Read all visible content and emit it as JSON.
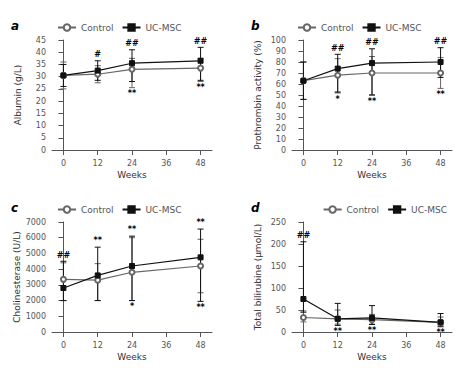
{
  "chart_data": [
    {
      "type": "line",
      "title": "a",
      "x_label": "Weeks",
      "y_label": "Albumin (g/L)",
      "x": [
        0,
        12,
        24,
        48
      ],
      "xlim": [
        -4,
        52
      ],
      "xticks": [
        0,
        12,
        24,
        36,
        48
      ],
      "ylim": [
        0,
        45
      ],
      "yticks": [
        0,
        5,
        10,
        15,
        20,
        25,
        30,
        35,
        40,
        45
      ],
      "grid": false,
      "legend": "upper left",
      "series": [
        {
          "name": "Control",
          "color": "#666666",
          "marker": "open_circle",
          "line_style": "solid",
          "values": [
            30.5,
            31.0,
            33.0,
            33.5
          ],
          "err_up": [
            5.5,
            3.5,
            4.5,
            4.0
          ],
          "err_down": [
            5.5,
            3.5,
            7.5,
            5.5
          ]
        },
        {
          "name": "UC-MSC",
          "color": "#111111",
          "marker": "square",
          "line_style": "solid",
          "values": [
            30.5,
            32.5,
            35.5,
            36.5
          ],
          "err_up": [
            4.5,
            4.0,
            5.5,
            5.5
          ],
          "err_down": [
            4.5,
            4.0,
            7.5,
            8.0
          ]
        }
      ],
      "annotations": [
        {
          "x": 12,
          "text": "#",
          "position": "above"
        },
        {
          "x": 24,
          "text": "##",
          "position": "above"
        },
        {
          "x": 48,
          "text": "##",
          "position": "above"
        },
        {
          "x": 24,
          "text": "**",
          "position": "below"
        },
        {
          "x": 48,
          "text": "**",
          "position": "below"
        }
      ]
    },
    {
      "type": "line",
      "title": "b",
      "x_label": "Weeks",
      "y_label": "Prothrombin activity (%)",
      "x": [
        0,
        12,
        24,
        48
      ],
      "xlim": [
        -4,
        52
      ],
      "xticks": [
        0,
        12,
        24,
        36,
        48
      ],
      "ylim": [
        0,
        100
      ],
      "yticks": [
        0,
        10,
        20,
        30,
        40,
        50,
        60,
        70,
        80,
        90,
        100
      ],
      "grid": false,
      "legend": "upper left",
      "series": [
        {
          "name": "Control",
          "color": "#666666",
          "marker": "open_circle",
          "line_style": "solid",
          "values": [
            63.0,
            68.0,
            70.0,
            70.0
          ],
          "err_up": [
            17.0,
            15.0,
            15.0,
            14.0
          ],
          "err_down": [
            17.0,
            15.0,
            20.0,
            14.0
          ]
        },
        {
          "name": "UC-MSC",
          "color": "#111111",
          "marker": "square",
          "line_style": "solid",
          "values": [
            63.0,
            74.0,
            79.0,
            80.0
          ],
          "err_up": [
            17.0,
            13.0,
            13.0,
            13.0
          ],
          "err_down": [
            17.0,
            22.0,
            29.0,
            14.0
          ]
        }
      ],
      "annotations": [
        {
          "x": 12,
          "text": "##",
          "position": "above"
        },
        {
          "x": 24,
          "text": "##",
          "position": "above"
        },
        {
          "x": 48,
          "text": "##",
          "position": "above"
        },
        {
          "x": 12,
          "text": "*",
          "position": "below"
        },
        {
          "x": 24,
          "text": "**",
          "position": "below"
        },
        {
          "x": 48,
          "text": "**",
          "position": "below"
        }
      ]
    },
    {
      "type": "line",
      "title": "c",
      "x_label": "Weeks",
      "y_label": "Cholinesterase (U/L)",
      "x": [
        0,
        12,
        24,
        48
      ],
      "xlim": [
        -4,
        52
      ],
      "xticks": [
        0,
        12,
        24,
        36,
        48
      ],
      "ylim": [
        0,
        7000
      ],
      "yticks": [
        0,
        1000,
        2000,
        3000,
        4000,
        5000,
        6000,
        7000
      ],
      "grid": false,
      "legend": "upper left",
      "series": [
        {
          "name": "Control",
          "color": "#666666",
          "marker": "open_circle",
          "line_style": "solid",
          "values": [
            3350,
            3300,
            3800,
            4200
          ],
          "err_up": [
            1050,
            1050,
            2200,
            1700
          ],
          "err_down": [
            1350,
            1300,
            1800,
            1700
          ]
        },
        {
          "name": "UC-MSC",
          "color": "#111111",
          "marker": "square",
          "line_style": "solid",
          "values": [
            2800,
            3600,
            4200,
            4750
          ],
          "err_up": [
            1700,
            1800,
            1900,
            1800
          ],
          "err_down": [
            800,
            1600,
            2200,
            2800
          ]
        }
      ],
      "annotations": [
        {
          "x": 0,
          "text": "##",
          "position": "above"
        },
        {
          "x": 12,
          "text": "**",
          "position": "above"
        },
        {
          "x": 24,
          "text": "**",
          "position": "above"
        },
        {
          "x": 48,
          "text": "**",
          "position": "above"
        },
        {
          "x": 24,
          "text": "*",
          "position": "below"
        },
        {
          "x": 48,
          "text": "**",
          "position": "below"
        }
      ]
    },
    {
      "type": "line",
      "title": "d",
      "x_label": "Weeks",
      "y_label": "Total bilirubine (μmol/L)",
      "x": [
        0,
        12,
        24,
        48
      ],
      "xlim": [
        -4,
        52
      ],
      "xticks": [
        0,
        12,
        24,
        36,
        48
      ],
      "ylim": [
        0,
        250
      ],
      "yticks": [
        0,
        50,
        100,
        150,
        200,
        250
      ],
      "grid": false,
      "legend": "upper right",
      "series": [
        {
          "name": "Control",
          "color": "#666666",
          "marker": "open_circle",
          "line_style": "solid",
          "values": [
            33.0,
            30.0,
            28.0,
            22.0
          ],
          "err_up": [
            15.0,
            20.0,
            12.0,
            12.0
          ],
          "err_down": [
            10.0,
            12.0,
            10.0,
            8.0
          ]
        },
        {
          "name": "UC-MSC",
          "color": "#111111",
          "marker": "square",
          "line_style": "solid",
          "values": [
            75.0,
            30.0,
            32.0,
            22.0
          ],
          "err_up": [
            130.0,
            35.0,
            28.0,
            20.0
          ],
          "err_down": [
            30.0,
            15.0,
            15.0,
            10.0
          ]
        }
      ],
      "annotations": [
        {
          "x": 0,
          "text": "##",
          "position": "above"
        },
        {
          "x": 12,
          "text": "**",
          "position": "below"
        },
        {
          "x": 24,
          "text": "**",
          "position": "below"
        },
        {
          "x": 48,
          "text": "**",
          "position": "below"
        }
      ]
    }
  ]
}
